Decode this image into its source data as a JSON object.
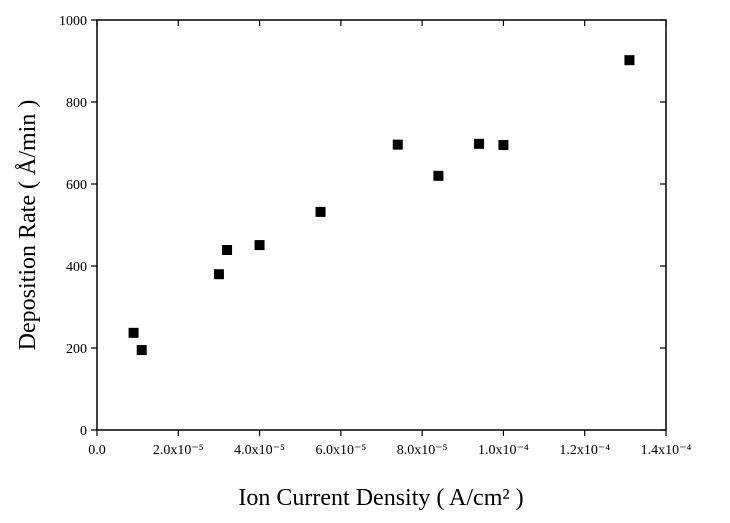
{
  "chart_data": {
    "type": "scatter",
    "x_label": "Ion Current Density ( A/cm² )",
    "y_label": "Deposition Rate ( Å/min )",
    "color": "#000000",
    "x": [
      9e-06,
      1.1e-05,
      3e-05,
      3.2e-05,
      4e-05,
      5.5e-05,
      7.4e-05,
      8.4e-05,
      9.4e-05,
      0.0001,
      0.000131
    ],
    "values": [
      237,
      195,
      380,
      439,
      451,
      532,
      696,
      620,
      698,
      695,
      902
    ],
    "xlim": [
      0,
      0.00014
    ],
    "xticks": [
      {
        "value": 0,
        "label": "0.0"
      },
      {
        "value": 2e-05,
        "label": "2.0x10⁻⁵"
      },
      {
        "value": 4e-05,
        "label": "4.0x10⁻⁵"
      },
      {
        "value": 6e-05,
        "label": "6.0x10⁻⁵"
      },
      {
        "value": 8e-05,
        "label": "8.0x10⁻⁵"
      },
      {
        "value": 0.0001,
        "label": "1.0x10⁻⁴"
      },
      {
        "value": 0.00012,
        "label": "1.2x10⁻⁴"
      },
      {
        "value": 0.00014,
        "label": "1.4x10⁻⁴"
      }
    ],
    "ylim": [
      0,
      1000
    ],
    "yticks": [
      0,
      200,
      400,
      600,
      800,
      1000
    ]
  }
}
